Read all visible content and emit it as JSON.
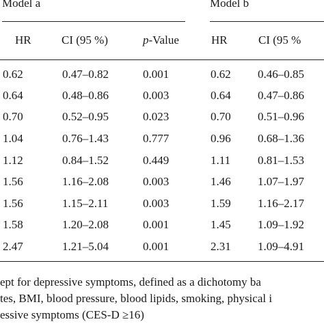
{
  "table": {
    "model_a_label": "Model a",
    "model_b_label": "Model b",
    "headers": {
      "hr_a": "HR",
      "ci_a": "CI (95 %)",
      "p_prefix": "p",
      "p_suffix": "-Value",
      "hr_b": "HR",
      "ci_b": "CI (95 %"
    },
    "rows": [
      {
        "hr_a": "0.62",
        "ci_a": "0.47–0.82",
        "p_a": "0.001",
        "hr_b": "0.62",
        "ci_b": "0.46–0.85"
      },
      {
        "hr_a": "0.64",
        "ci_a": "0.48–0.86",
        "p_a": "0.003",
        "hr_b": "0.64",
        "ci_b": "0.47–0.86"
      },
      {
        "hr_a": "0.70",
        "ci_a": "0.52–0.95",
        "p_a": "0.023",
        "hr_b": "0.70",
        "ci_b": "0.51–0.96"
      },
      {
        "hr_a": "1.04",
        "ci_a": "0.76–1.43",
        "p_a": "0.777",
        "hr_b": "0.96",
        "ci_b": "0.68–1.36"
      },
      {
        "hr_a": "1.12",
        "ci_a": "0.84–1.52",
        "p_a": "0.449",
        "hr_b": "1.11",
        "ci_b": "0.81–1.53"
      },
      {
        "hr_a": "1.56",
        "ci_a": "1.16–2.08",
        "p_a": "0.003",
        "hr_b": "1.46",
        "ci_b": "1.07–1.97"
      },
      {
        "hr_a": "1.56",
        "ci_a": "1.15–2.11",
        "p_a": "0.003",
        "hr_b": "1.59",
        "ci_b": "1.16–2.17"
      },
      {
        "hr_a": "1.58",
        "ci_a": "1.20–2.08",
        "p_a": "0.001",
        "hr_b": "1.45",
        "ci_b": "1.09–1.92"
      },
      {
        "hr_a": "2.47",
        "ci_a": "1.21–5.04",
        "p_a": "0.001",
        "hr_b": "2.31",
        "ci_b": "1.09–4.91"
      }
    ]
  },
  "footnotes": {
    "line1": "ept for depressive symptoms, defined as a dichotomy ba",
    "line2": "tes, BMI, blood pressure, blood lipids, smoking, physical i",
    "line3": "essive symptoms (CES-D ≥16)"
  }
}
